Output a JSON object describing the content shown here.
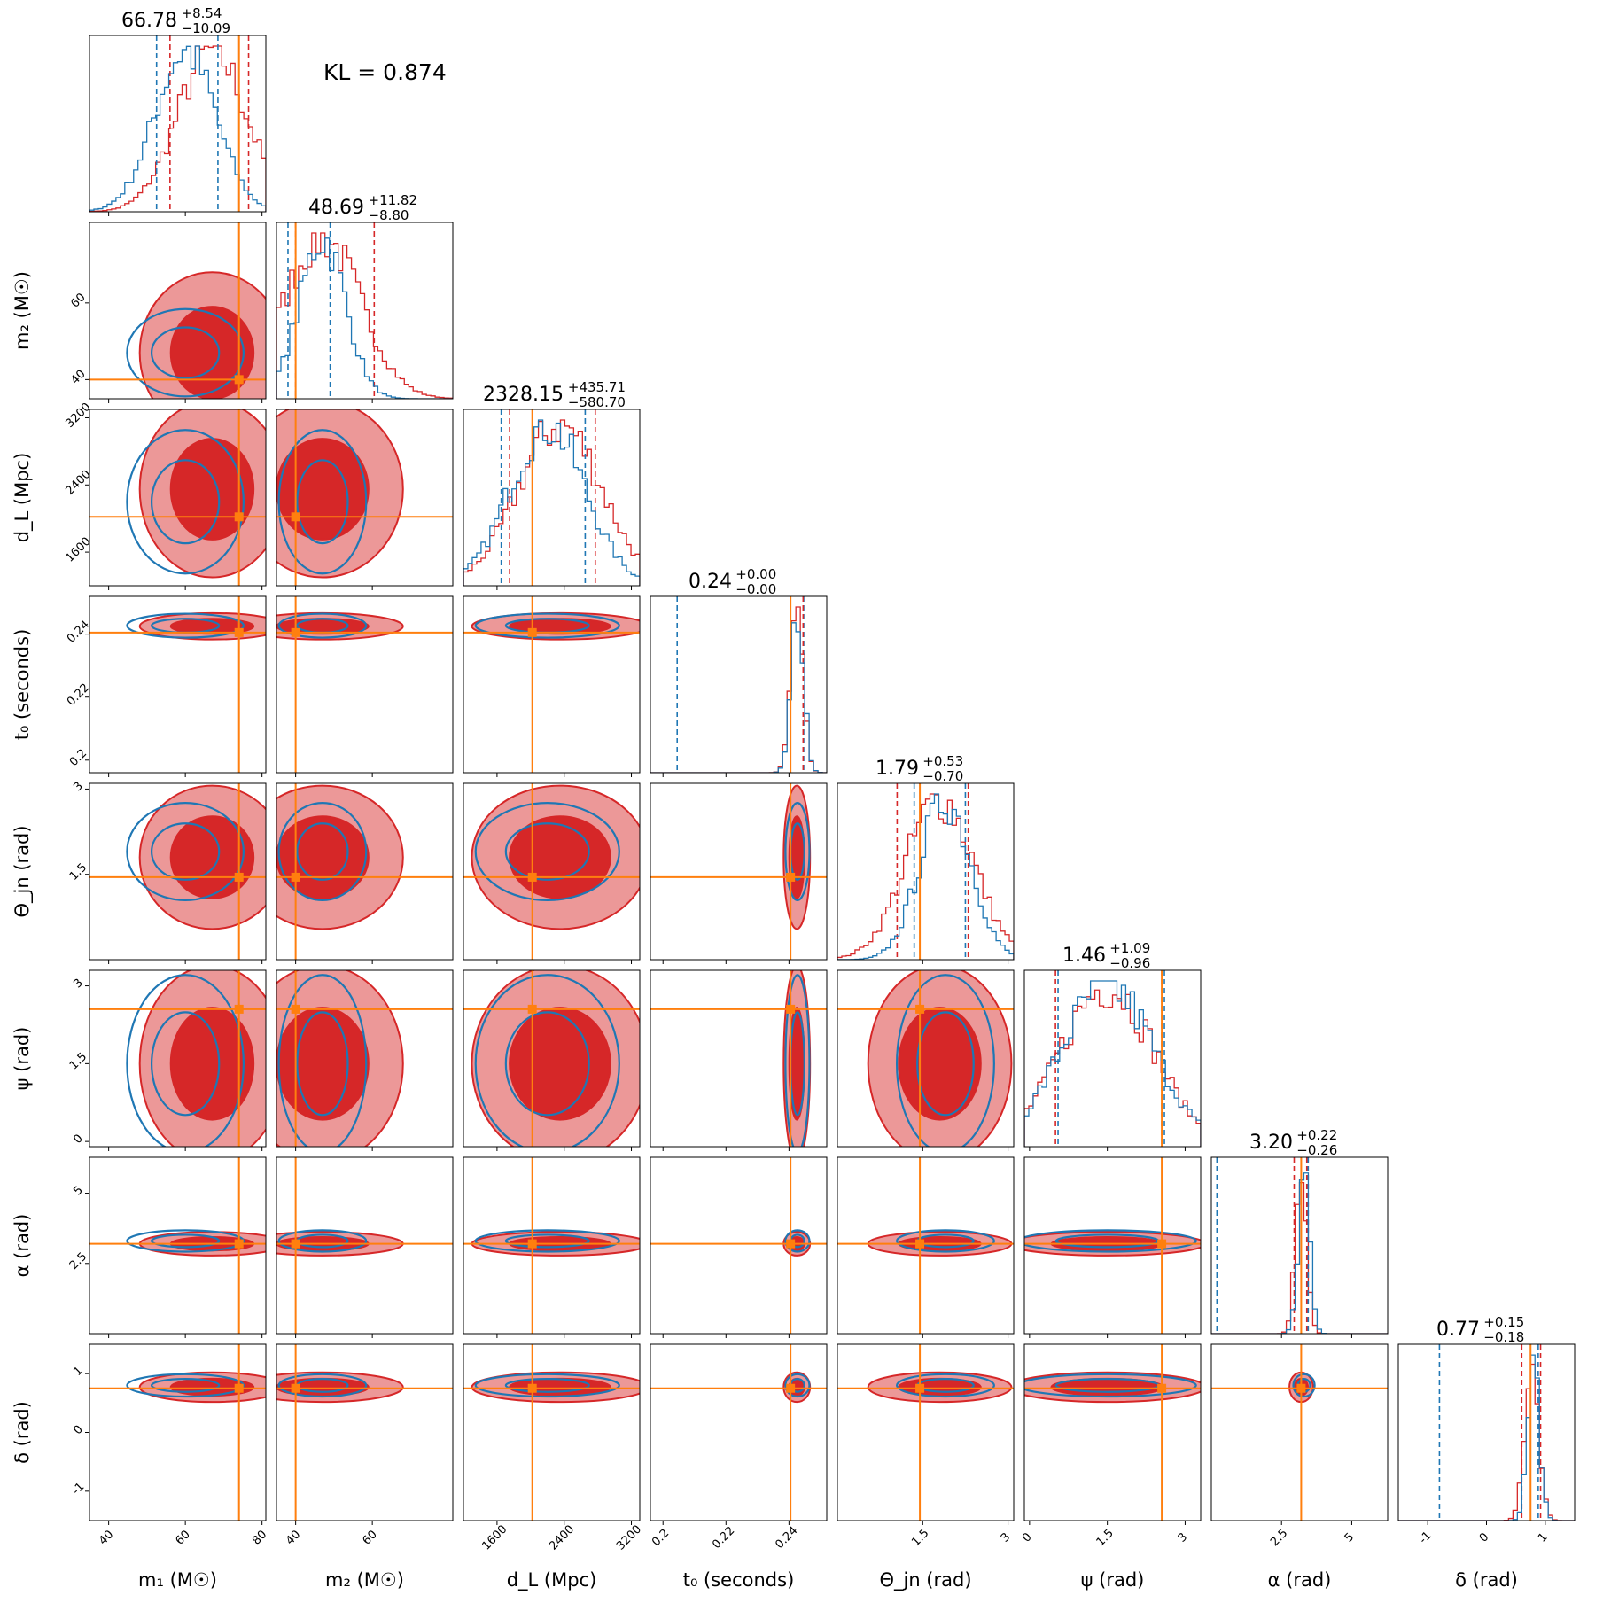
{
  "chart_data": {
    "type": "corner",
    "annotation": "KL = 0.874",
    "colors": {
      "red": "#d62728",
      "red_light": "#ec9898",
      "blue": "#1f77b4",
      "truth": "#ff7f0e"
    },
    "params": [
      {
        "key": "m1",
        "label": "m₁ (M☉)",
        "range": [
          35,
          81
        ],
        "ticks": [
          40,
          60,
          80
        ],
        "truth": 74,
        "title": {
          "value": "66.78",
          "plus": "+8.54",
          "minus": "−10.09"
        },
        "red": {
          "mean": 67,
          "sd": 9,
          "lo": 56,
          "hi": 76.5
        },
        "blue": {
          "mean": 60,
          "sd": 8,
          "lo": 52.5,
          "hi": 68.5
        }
      },
      {
        "key": "m2",
        "label": "m₂ (M☉)",
        "range": [
          35,
          81
        ],
        "ticks": [
          40,
          60
        ],
        "truth": 40,
        "title": {
          "value": "48.69",
          "plus": "+11.82",
          "minus": "−8.80"
        },
        "red": {
          "mean": 47,
          "sd": 10,
          "lo": 40,
          "hi": 60.5
        },
        "blue": {
          "mean": 47,
          "sd": 6,
          "lo": 38,
          "hi": 49
        }
      },
      {
        "key": "dL",
        "label": "d_L (Mpc)",
        "range": [
          1200,
          3300
        ],
        "ticks": [
          1600,
          2400,
          3200
        ],
        "truth": 2020,
        "title": {
          "value": "2328.15",
          "plus": "+435.71",
          "minus": "−580.70"
        },
        "red": {
          "mean": 2350,
          "sd": 500,
          "lo": 1750,
          "hi": 2770
        },
        "blue": {
          "mean": 2200,
          "sd": 450,
          "lo": 1650,
          "hi": 2650
        }
      },
      {
        "key": "t0",
        "label": "t₀ (seconds)",
        "range": [
          0.196,
          0.252
        ],
        "ticks": [
          0.2,
          0.22,
          0.24
        ],
        "truth": 0.2405,
        "title": {
          "value": "0.24",
          "plus": "+0.00",
          "minus": "−0.00"
        },
        "red": {
          "mean": 0.2425,
          "sd": 0.002,
          "lo": 0.2405,
          "hi": 0.2445
        },
        "blue": {
          "mean": 0.2427,
          "sd": 0.002,
          "lo": 0.2045,
          "hi": 0.245
        }
      },
      {
        "key": "thetajn",
        "label": "Θ_jn (rad)",
        "range": [
          0,
          3.1
        ],
        "ticks": [
          1.5,
          3.0
        ],
        "truth": 1.45,
        "title": {
          "value": "1.79",
          "plus": "+0.53",
          "minus": "−0.70"
        },
        "red": {
          "mean": 1.8,
          "sd": 0.6,
          "lo": 1.05,
          "hi": 2.3
        },
        "blue": {
          "mean": 1.9,
          "sd": 0.45,
          "lo": 1.35,
          "hi": 2.25
        }
      },
      {
        "key": "psi",
        "label": "ψ (rad)",
        "range": [
          -0.1,
          3.3
        ],
        "ticks": [
          0.0,
          1.5,
          3.0
        ],
        "truth": 2.55,
        "title": {
          "value": "1.46",
          "plus": "+1.09",
          "minus": "−0.96"
        },
        "red": {
          "mean": 1.5,
          "sd": 0.9,
          "lo": 0.5,
          "hi": 2.55
        },
        "blue": {
          "mean": 1.5,
          "sd": 0.9,
          "lo": 0.55,
          "hi": 2.6
        }
      },
      {
        "key": "alpha",
        "label": "α (rad)",
        "range": [
          0,
          6.28
        ],
        "ticks": [
          2.5,
          5.0
        ],
        "truth": 3.2,
        "title": {
          "value": "3.20",
          "plus": "+0.22",
          "minus": "−0.26"
        },
        "red": {
          "mean": 3.2,
          "sd": 0.2,
          "lo": 2.95,
          "hi": 3.4
        },
        "blue": {
          "mean": 3.3,
          "sd": 0.2,
          "lo": 0.2,
          "hi": 3.45
        }
      },
      {
        "key": "delta",
        "label": "δ (rad)",
        "range": [
          -1.5,
          1.5
        ],
        "ticks": [
          -1,
          0,
          1
        ],
        "truth": 0.75,
        "title": {
          "value": "0.77",
          "plus": "+0.15",
          "minus": "−0.18"
        },
        "red": {
          "mean": 0.77,
          "sd": 0.12,
          "lo": 0.6,
          "hi": 0.92
        },
        "blue": {
          "mean": 0.8,
          "sd": 0.1,
          "lo": -0.8,
          "hi": 0.88
        }
      }
    ]
  }
}
